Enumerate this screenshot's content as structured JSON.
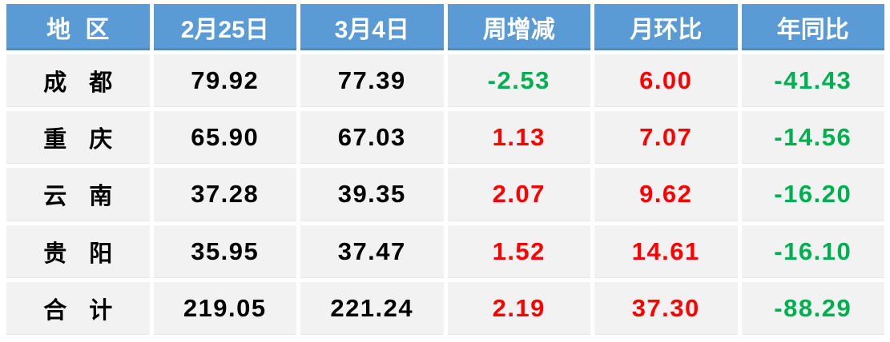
{
  "chart_data": {
    "type": "table",
    "columns": [
      "地 区",
      "2月25日",
      "3月4日",
      "周增减",
      "月环比",
      "年同比"
    ],
    "rows": [
      [
        "成 都",
        "79.92",
        "77.39",
        "-2.53",
        "6.00",
        "-41.43"
      ],
      [
        "重 庆",
        "65.90",
        "67.03",
        "1.13",
        "7.07",
        "-14.56"
      ],
      [
        "云 南",
        "37.28",
        "39.35",
        "2.07",
        "9.62",
        "-16.20"
      ],
      [
        "贵 阳",
        "35.95",
        "37.47",
        "1.52",
        "14.61",
        "-16.10"
      ],
      [
        "合 计",
        "219.05",
        "221.24",
        "2.19",
        "37.30",
        "-88.29"
      ]
    ],
    "notes": "negative values shown in green, positive change values shown in red"
  },
  "colors": {
    "header_bg": "#5B9BD5",
    "header_text": "#FFFFFF",
    "cell_bg": "#F2F2F2",
    "value_text": "#000000",
    "positive": "#FF0000",
    "negative": "#00B050"
  }
}
